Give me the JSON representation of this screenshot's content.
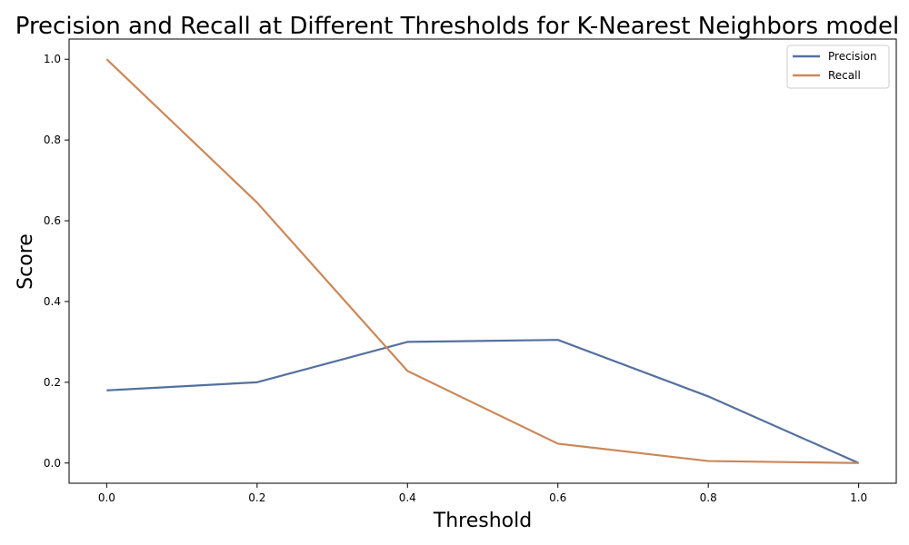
{
  "chart_data": {
    "type": "line",
    "title": "Precision and Recall at Different Thresholds for K-Nearest Neighbors  model",
    "xlabel": "Threshold",
    "ylabel": "Score",
    "x": [
      0.0,
      0.2,
      0.4,
      0.6,
      0.8,
      1.0
    ],
    "xticks": [
      "0.0",
      "0.2",
      "0.4",
      "0.6",
      "0.8",
      "1.0"
    ],
    "yticks": [
      "0.0",
      "0.2",
      "0.4",
      "0.6",
      "0.8",
      "1.0"
    ],
    "xlim": [
      -0.05,
      1.05
    ],
    "ylim": [
      -0.05,
      1.05
    ],
    "grid": false,
    "legend_position": "top-right",
    "series": [
      {
        "name": "Precision",
        "color": "#5470a0",
        "values": [
          0.18,
          0.2,
          0.3,
          0.305,
          0.165,
          0.0
        ]
      },
      {
        "name": "Recall",
        "color": "#cc8759",
        "values": [
          1.0,
          0.645,
          0.228,
          0.048,
          0.005,
          0.0
        ]
      }
    ]
  }
}
